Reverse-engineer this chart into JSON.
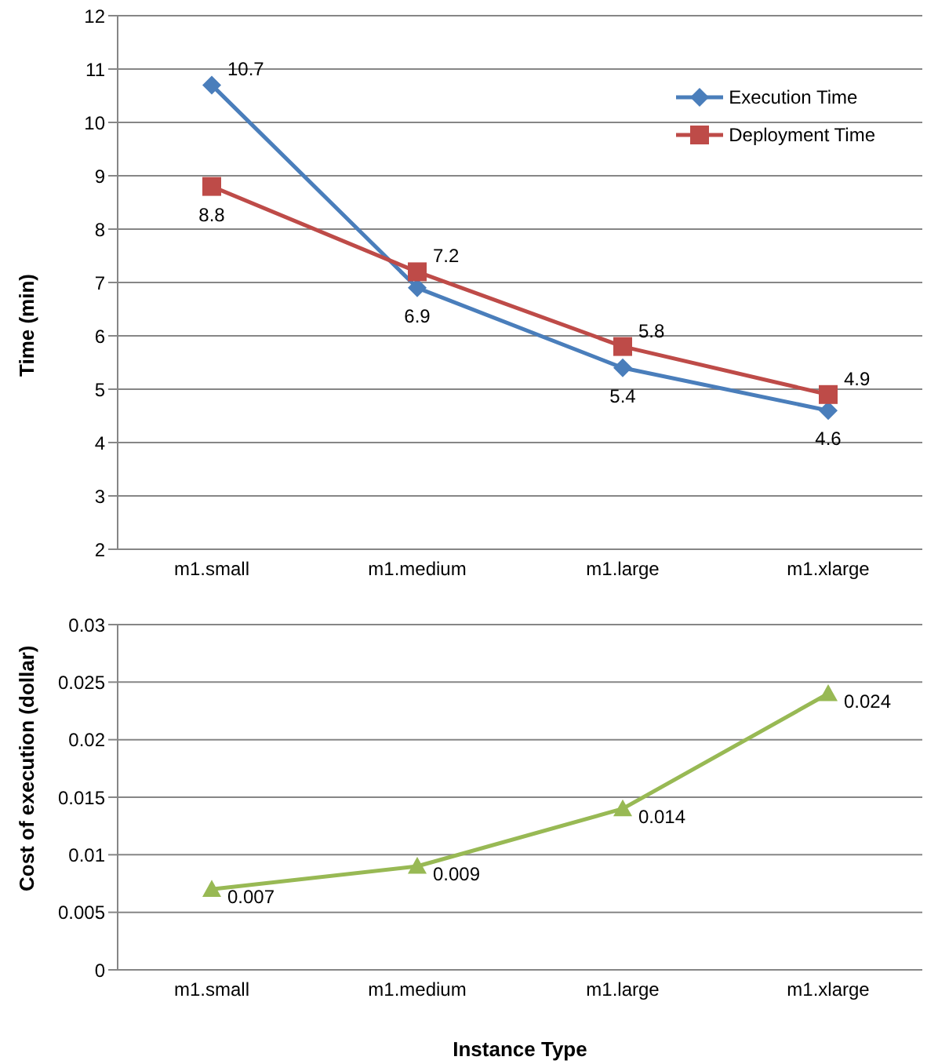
{
  "chart_data": [
    {
      "type": "line",
      "categories": [
        "m1.small",
        "m1.medium",
        "m1.large",
        "m1.xlarge"
      ],
      "ylabel": "Time (min)",
      "series": [
        {
          "name": "Execution Time",
          "color": "#4a7ebb",
          "marker": "diamond",
          "values": [
            10.7,
            6.9,
            5.4,
            4.6
          ]
        },
        {
          "name": "Deployment Time",
          "color": "#be4b48",
          "marker": "square",
          "values": [
            8.8,
            7.2,
            5.8,
            4.9
          ]
        }
      ],
      "ylim": [
        2,
        12
      ],
      "yticks": [
        2,
        3,
        4,
        5,
        6,
        7,
        8,
        9,
        10,
        11,
        12
      ],
      "grid": "y",
      "legend": "top right",
      "data_labels": true
    },
    {
      "type": "line",
      "categories": [
        "m1.small",
        "m1.medium",
        "m1.large",
        "m1.xlarge"
      ],
      "ylabel": "Cost of execution (dollar)",
      "xlabel": "Instance Type",
      "series": [
        {
          "color": "#98b954",
          "marker": "triangle",
          "values": [
            0.007,
            0.009,
            0.014,
            0.024
          ]
        }
      ],
      "ylim": [
        0,
        0.03
      ],
      "yticks": [
        0,
        0.005,
        0.01,
        0.015,
        0.02,
        0.025,
        0.03
      ],
      "grid": "y",
      "legend": false,
      "data_labels": true
    }
  ]
}
